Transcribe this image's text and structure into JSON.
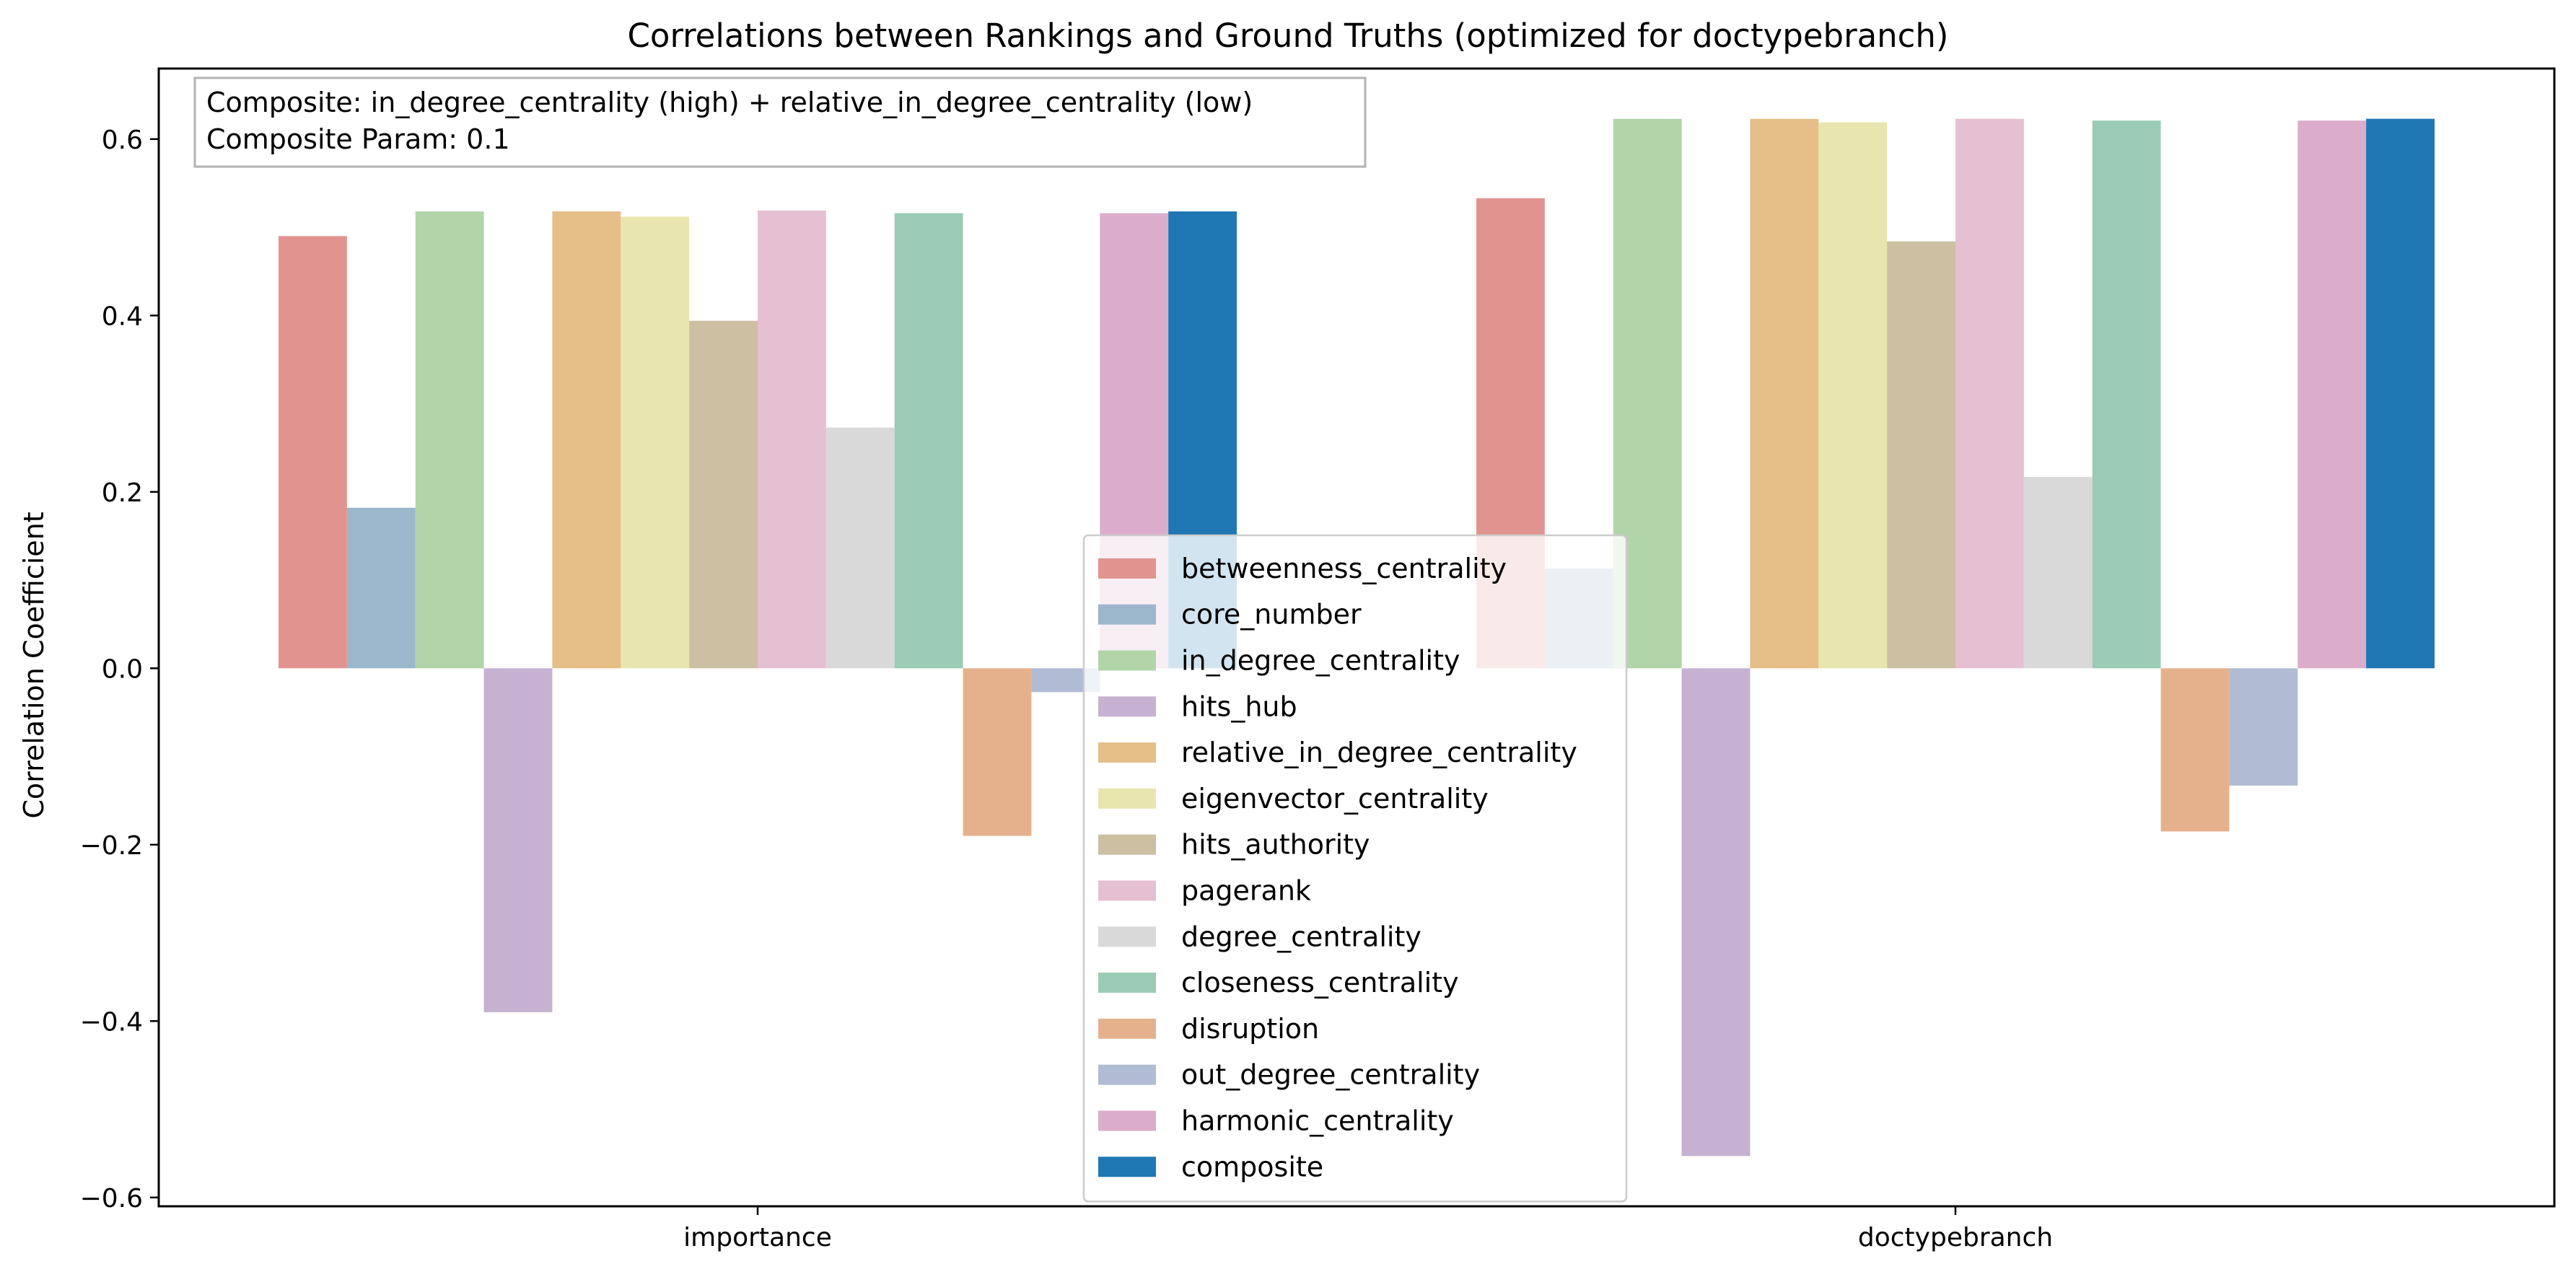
{
  "chart_data": {
    "type": "bar",
    "title": "Correlations between Rankings and Ground Truths (optimized for doctypebranch)",
    "xlabel": "",
    "ylabel": "Correlation Coefficient",
    "ylim": [
      -0.61,
      0.68
    ],
    "yticks": [
      -0.6,
      -0.4,
      -0.2,
      0.0,
      0.2,
      0.4,
      0.6
    ],
    "ytick_labels": [
      "−0.6",
      "−0.4",
      "−0.2",
      "0.0",
      "0.2",
      "0.4",
      "0.6"
    ],
    "grid": false,
    "legend_position": "lower center",
    "categories": [
      "importance",
      "doctypebranch"
    ],
    "annotation": {
      "line1": "Composite: in_degree_centrality (high) + relative_in_degree_centrality (low)",
      "line2": "Composite Param: 0.1"
    },
    "series": [
      {
        "name": "betweenness_centrality",
        "color": "#e1948f",
        "values": [
          0.49,
          0.533
        ]
      },
      {
        "name": "core_number",
        "color": "#9cb6cc",
        "values": [
          0.182,
          0.113
        ]
      },
      {
        "name": "in_degree_centrality",
        "color": "#b2d4a9",
        "values": [
          0.518,
          0.623
        ]
      },
      {
        "name": "hits_hub",
        "color": "#c7b1d0",
        "values": [
          -0.39,
          -0.553
        ]
      },
      {
        "name": "relative_in_degree_centrality",
        "color": "#e5be88",
        "values": [
          0.518,
          0.623
        ]
      },
      {
        "name": "eigenvector_centrality",
        "color": "#e8e5ae",
        "values": [
          0.512,
          0.619
        ]
      },
      {
        "name": "hits_authority",
        "color": "#cdbfa2",
        "values": [
          0.394,
          0.484
        ]
      },
      {
        "name": "pagerank",
        "color": "#e5bfd2",
        "values": [
          0.519,
          0.623
        ]
      },
      {
        "name": "degree_centrality",
        "color": "#d9d9d9",
        "values": [
          0.273,
          0.217
        ]
      },
      {
        "name": "closeness_centrality",
        "color": "#9bcbb4",
        "values": [
          0.516,
          0.621
        ]
      },
      {
        "name": "disruption",
        "color": "#e5b18c",
        "values": [
          -0.19,
          -0.185
        ]
      },
      {
        "name": "out_degree_centrality",
        "color": "#b0bcd4",
        "values": [
          -0.027,
          -0.133
        ]
      },
      {
        "name": "harmonic_centrality",
        "color": "#dbadcb",
        "values": [
          0.516,
          0.621
        ]
      },
      {
        "name": "composite",
        "color": "#1f77b4",
        "values": [
          0.518,
          0.623
        ]
      }
    ]
  }
}
